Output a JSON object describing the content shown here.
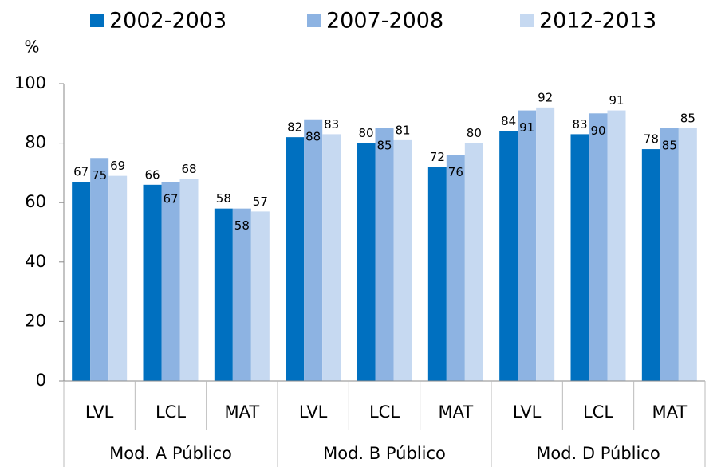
{
  "chart_data": {
    "type": "bar",
    "y_label": "%",
    "categories": [
      "LVL",
      "LCL",
      "MAT",
      "LVL",
      "LCL",
      "MAT",
      "LVL",
      "LCL",
      "MAT"
    ],
    "category_groups": [
      "Mod. A Público",
      "Mod. B Público",
      "Mod. D Público"
    ],
    "series": [
      {
        "name": "2002-2003",
        "color": "#0070c0",
        "values": [
          67,
          66,
          58,
          82,
          80,
          72,
          84,
          83,
          78
        ]
      },
      {
        "name": "2007-2008",
        "color": "#8db3e2",
        "values": [
          75,
          67,
          58,
          88,
          85,
          76,
          91,
          90,
          85
        ]
      },
      {
        "name": "2012-2013",
        "color": "#c6d9f1",
        "values": [
          69,
          68,
          57,
          83,
          81,
          80,
          92,
          91,
          85
        ]
      }
    ],
    "ylim": [
      0,
      100
    ],
    "yticks": [
      0,
      20,
      40,
      60,
      80,
      100
    ],
    "legend": "top"
  }
}
